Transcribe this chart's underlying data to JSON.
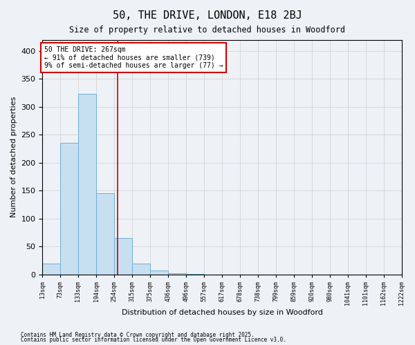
{
  "title": "50, THE DRIVE, LONDON, E18 2BJ",
  "subtitle": "Size of property relative to detached houses in Woodford",
  "xlabel": "Distribution of detached houses by size in Woodford",
  "ylabel": "Number of detached properties",
  "bin_edges": [
    13,
    73,
    133,
    194,
    254,
    315,
    375,
    436,
    496,
    557,
    617,
    678,
    738,
    799,
    859,
    920,
    980,
    1041,
    1101,
    1162,
    1222
  ],
  "bar_heights": [
    20,
    235,
    323,
    145,
    65,
    20,
    7,
    2,
    1,
    0,
    0,
    0,
    0,
    0,
    0,
    0,
    0,
    0,
    0,
    0
  ],
  "bar_color": "#c8dff0",
  "bar_edge_color": "#6bafd6",
  "property_size": 267,
  "annotation_line1": "50 THE DRIVE: 267sqm",
  "annotation_line2": "← 91% of detached houses are smaller (739)",
  "annotation_line3": "9% of semi-detached houses are larger (77) →",
  "annotation_box_color": "#cc0000",
  "vline_color": "#cc0000",
  "ylim": [
    0,
    420
  ],
  "yticks": [
    0,
    50,
    100,
    150,
    200,
    250,
    300,
    350,
    400
  ],
  "grid_color": "#cccccc",
  "footnote1": "Contains HM Land Registry data © Crown copyright and database right 2025.",
  "footnote2": "Contains public sector information licensed under the Open Government Licence v3.0.",
  "background_color": "#eef2f7",
  "plot_bg_color": "#eef2f7"
}
